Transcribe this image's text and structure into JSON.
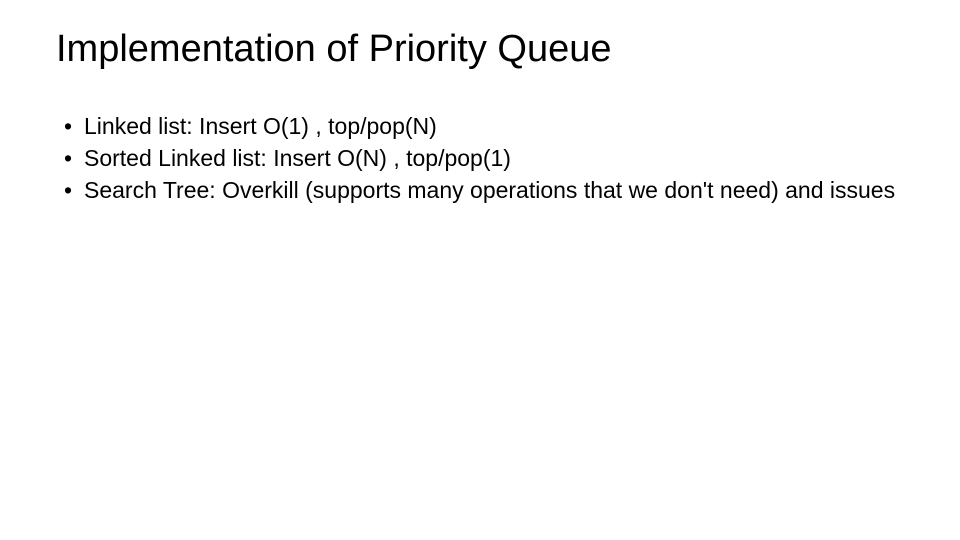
{
  "slide": {
    "title": "Implementation of Priority Queue",
    "bullets": [
      "Linked list: Insert O(1) , top/pop(N)",
      "Sorted Linked list: Insert O(N) , top/pop(1)",
      "Search Tree: Overkill (supports many operations that we don't need) and issues"
    ],
    "title_fontsize": 38,
    "body_fontsize": 23,
    "text_color": "#000000",
    "background_color": "#ffffff"
  }
}
